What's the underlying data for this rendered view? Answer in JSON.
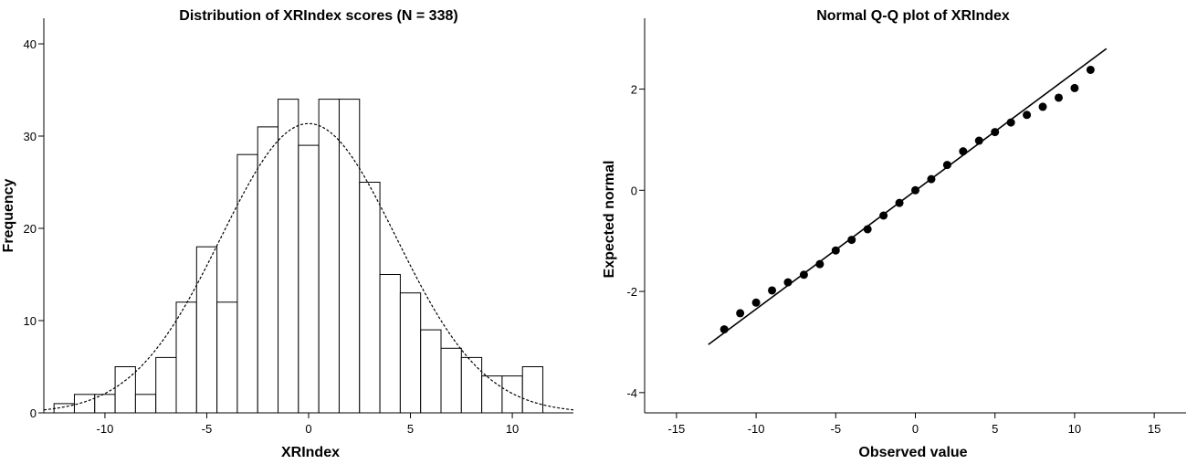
{
  "chart_data": [
    {
      "type": "bar",
      "subtype": "histogram",
      "title": "Distribution of XRIndex scores (N = 338)",
      "xlabel": "XRIndex",
      "ylabel": "Frequency",
      "xlim": [
        -13,
        13
      ],
      "ylim": [
        0,
        40
      ],
      "x_ticks": [
        -10,
        -5,
        0,
        5,
        10
      ],
      "y_ticks": [
        0,
        10,
        20,
        30,
        40
      ],
      "bin_width": 1,
      "bin_centers": [
        -12,
        -11,
        -10,
        -9,
        -8,
        -7,
        -6,
        -5,
        -4,
        -3,
        -2,
        -1,
        0,
        1,
        2,
        3,
        4,
        5,
        6,
        7,
        8,
        9,
        10,
        11
      ],
      "values": [
        1,
        2,
        2,
        5,
        2,
        6,
        12,
        18,
        12,
        28,
        31,
        34,
        29,
        34,
        34,
        25,
        15,
        13,
        9,
        7,
        6,
        4,
        4,
        5
      ],
      "overlay": {
        "type": "normal-curve",
        "style": "dashed",
        "mean": 0,
        "sd": 4.3,
        "n": 338
      },
      "grid": false
    },
    {
      "type": "scatter",
      "subtype": "qq-plot",
      "title": "Normal Q-Q plot of XRIndex",
      "xlabel": "Observed value",
      "ylabel": "Expected normal",
      "xlim": [
        -17,
        17
      ],
      "ylim": [
        -4.4,
        3.4
      ],
      "x_ticks": [
        -15,
        -10,
        -5,
        0,
        5,
        10,
        15
      ],
      "y_ticks": [
        -4,
        -2,
        0,
        2
      ],
      "x": [
        -12,
        -11,
        -10,
        -9,
        -8,
        -7,
        -6,
        -5,
        -4,
        -3,
        -2,
        -1,
        0,
        1,
        2,
        3,
        4,
        5,
        6,
        7,
        8,
        9,
        10,
        11
      ],
      "y": [
        -2.75,
        -2.43,
        -2.22,
        -1.98,
        -1.82,
        -1.67,
        -1.46,
        -1.19,
        -0.98,
        -0.77,
        -0.5,
        -0.25,
        0.0,
        0.22,
        0.5,
        0.77,
        0.98,
        1.15,
        1.34,
        1.49,
        1.65,
        1.83,
        2.02,
        2.38
      ],
      "reference_line": {
        "x": [
          -13,
          12
        ],
        "y": [
          -3.05,
          2.8
        ]
      },
      "grid": false
    }
  ]
}
